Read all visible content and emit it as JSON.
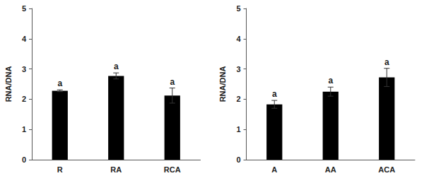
{
  "chart_data": [
    {
      "type": "bar",
      "y_label": "RNA/DNA",
      "categories": [
        "R",
        "RA",
        "RCA"
      ],
      "values": [
        2.28,
        2.77,
        2.12
      ],
      "errors": [
        0.03,
        0.1,
        0.25
      ],
      "annotations": [
        "a",
        "a",
        "a"
      ],
      "color": "#000000",
      "ylim": [
        0,
        5
      ],
      "yticks": [
        0,
        1,
        2,
        3,
        4,
        5
      ],
      "grid": false
    },
    {
      "type": "bar",
      "y_label": "RNA/DNA",
      "categories": [
        "A",
        "AA",
        "ACA"
      ],
      "values": [
        1.83,
        2.25,
        2.72
      ],
      "errors": [
        0.13,
        0.15,
        0.3
      ],
      "annotations": [
        "a",
        "a",
        "a"
      ],
      "color": "#000000",
      "ylim": [
        0,
        5
      ],
      "yticks": [
        0,
        1,
        2,
        3,
        4,
        5
      ],
      "grid": false
    }
  ]
}
